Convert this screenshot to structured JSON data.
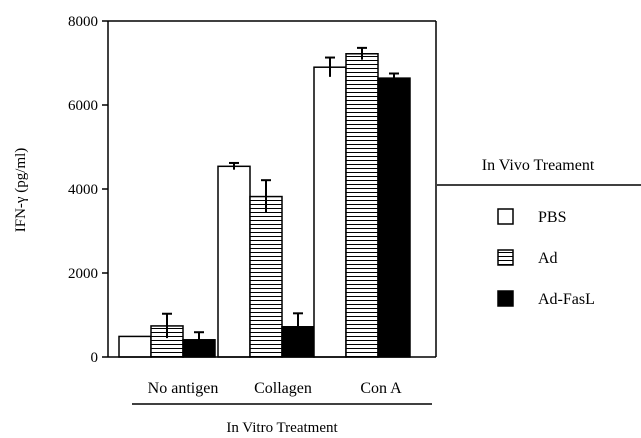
{
  "chart_data": {
    "type": "bar",
    "ylabel": "IFN-γ (pg/ml)",
    "xlabel": "In Vitro Treatment",
    "ylim": [
      0,
      8000
    ],
    "yticks": [
      "0",
      "2000",
      "4000",
      "6000",
      "8000"
    ],
    "ytick_values": [
      0,
      2000,
      4000,
      6000,
      8000
    ],
    "categories": [
      "No antigen",
      "Collagen",
      "Con A"
    ],
    "series": [
      {
        "name": "PBS",
        "values": [
          490,
          4540,
          6900
        ],
        "errors": [
          0,
          80,
          230
        ],
        "pattern": "open"
      },
      {
        "name": "Ad",
        "values": [
          740,
          3820,
          7220
        ],
        "errors": [
          290,
          390,
          140
        ],
        "pattern": "hlines"
      },
      {
        "name": "Ad-FasL",
        "values": [
          410,
          720,
          6640
        ],
        "errors": [
          180,
          320,
          110
        ],
        "pattern": "filled"
      }
    ],
    "legend": {
      "title": "In Vivo Treament",
      "placement": "right"
    }
  }
}
